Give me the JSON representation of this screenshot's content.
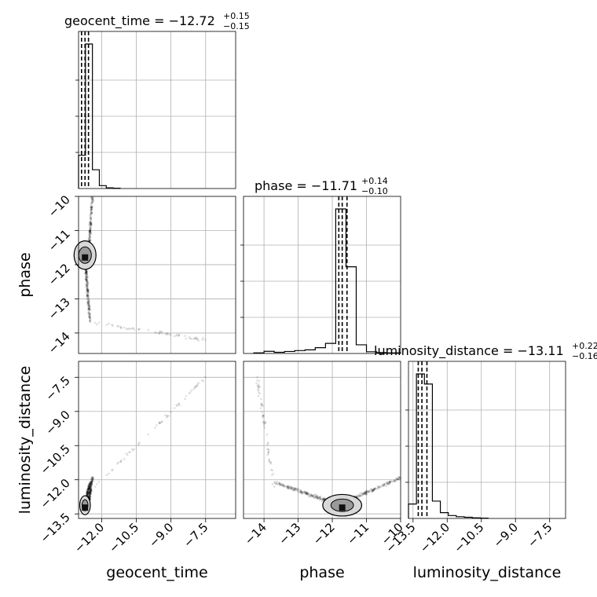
{
  "chart_data": {
    "type": "corner",
    "parameters": [
      "geocent_time",
      "phase",
      "luminosity_distance"
    ],
    "titles": [
      {
        "param": "geocent_time",
        "median": "−12.72",
        "upper": "+0.15",
        "lower": "−0.15"
      },
      {
        "param": "phase",
        "median": "−11.71",
        "upper": "+0.14",
        "lower": "−0.10"
      },
      {
        "param": "luminosity_distance",
        "median": "−13.11",
        "upper": "+0.22",
        "lower": "−0.16"
      }
    ],
    "ranges": {
      "geocent_time": [
        -13.0,
        -6.2
      ],
      "phase": [
        -14.6,
        -10.0
      ],
      "luminosity_distance": [
        -13.7,
        -6.8
      ]
    },
    "ticks": {
      "geocent_time": {
        "values": [
          -12.0,
          -10.5,
          -9.0,
          -7.5
        ],
        "labels": [
          "−12.0",
          "−10.5",
          "−9.0",
          "−7.5"
        ]
      },
      "phase": {
        "values": [
          -14,
          -13,
          -12,
          -11,
          -10
        ],
        "labels": [
          "−14",
          "−13",
          "−12",
          "−11",
          "−10"
        ]
      },
      "luminosity_distance": {
        "values": [
          -13.5,
          -12.0,
          -10.5,
          -9.0,
          -7.5
        ],
        "labels": [
          "−13.5",
          "−12.0",
          "−10.5",
          "−9.0",
          "−7.5"
        ]
      }
    },
    "quantiles": {
      "geocent_time": [
        -12.87,
        -12.72,
        -12.57
      ],
      "phase": [
        -11.81,
        -11.71,
        -11.57
      ],
      "luminosity_distance": [
        -13.27,
        -13.11,
        -12.89
      ]
    },
    "histograms": {
      "geocent_time": {
        "edges": [
          -13.0,
          -12.7,
          -12.4,
          -12.1,
          -11.8,
          -11.5,
          -11.2
        ],
        "counts": [
          0.23,
          1.0,
          0.13,
          0.02,
          0.005,
          0.002
        ]
      },
      "phase": {
        "edges": [
          -14.3,
          -14.0,
          -13.7,
          -13.4,
          -13.1,
          -12.8,
          -12.5,
          -12.2,
          -11.9,
          -11.6,
          -11.3,
          -11.0,
          -10.7,
          -10.4,
          -10.0
        ],
        "counts": [
          0.004,
          0.015,
          0.008,
          0.014,
          0.02,
          0.025,
          0.04,
          0.07,
          1.0,
          0.6,
          0.06,
          0.012,
          0.006,
          0.004
        ]
      },
      "luminosity_distance": {
        "edges": [
          -13.7,
          -13.35,
          -13.0,
          -12.65,
          -12.3,
          -11.95,
          -11.6,
          -11.25,
          -10.9,
          -10.55,
          -10.2
        ],
        "counts": [
          0.1,
          1.0,
          0.93,
          0.12,
          0.04,
          0.02,
          0.012,
          0.008,
          0.004,
          0.002
        ]
      }
    },
    "grid": true
  }
}
